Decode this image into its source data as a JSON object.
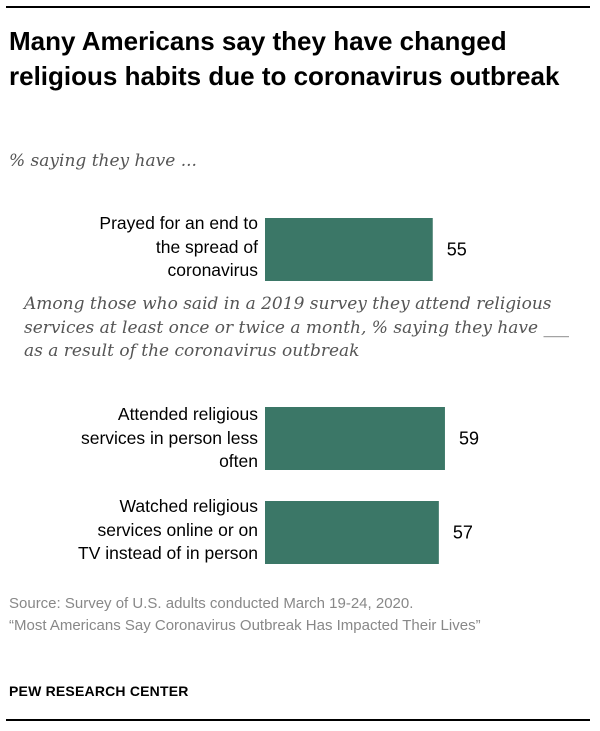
{
  "title": "Many Americans say they have changed religious habits due to coronavirus outbreak",
  "subtitle": "% saying they have ...",
  "note": "Among those who said in a 2019 survey they attend religious services at least once or twice a month, % saying they have ___ as a result of the coronavirus outbreak",
  "source": "Source: Survey of U.S. adults conducted March 19-24, 2020.",
  "report": "“Most Americans Say Coronavirus Outbreak Has Impacted Their Lives”",
  "brand": "PEW RESEARCH CENTER",
  "colors": {
    "bar": "#3b7767"
  },
  "chart_data": {
    "type": "bar",
    "orientation": "horizontal",
    "title": "Many Americans say they have changed religious habits due to coronavirus outbreak",
    "unit": "%",
    "categories": [
      "Prayed for an end to the spread of coronavirus",
      "Attended religious services in person less often",
      "Watched religious services online or on TV instead of in person"
    ],
    "category_lines": [
      [
        "Prayed for an end to",
        "the spread of",
        "coronavirus"
      ],
      [
        "Attended religious",
        "services in person less",
        "often"
      ],
      [
        "Watched religious",
        "services online or on",
        "TV instead of in person"
      ]
    ],
    "values": [
      55,
      59,
      57
    ],
    "xlim": [
      0,
      100
    ]
  }
}
